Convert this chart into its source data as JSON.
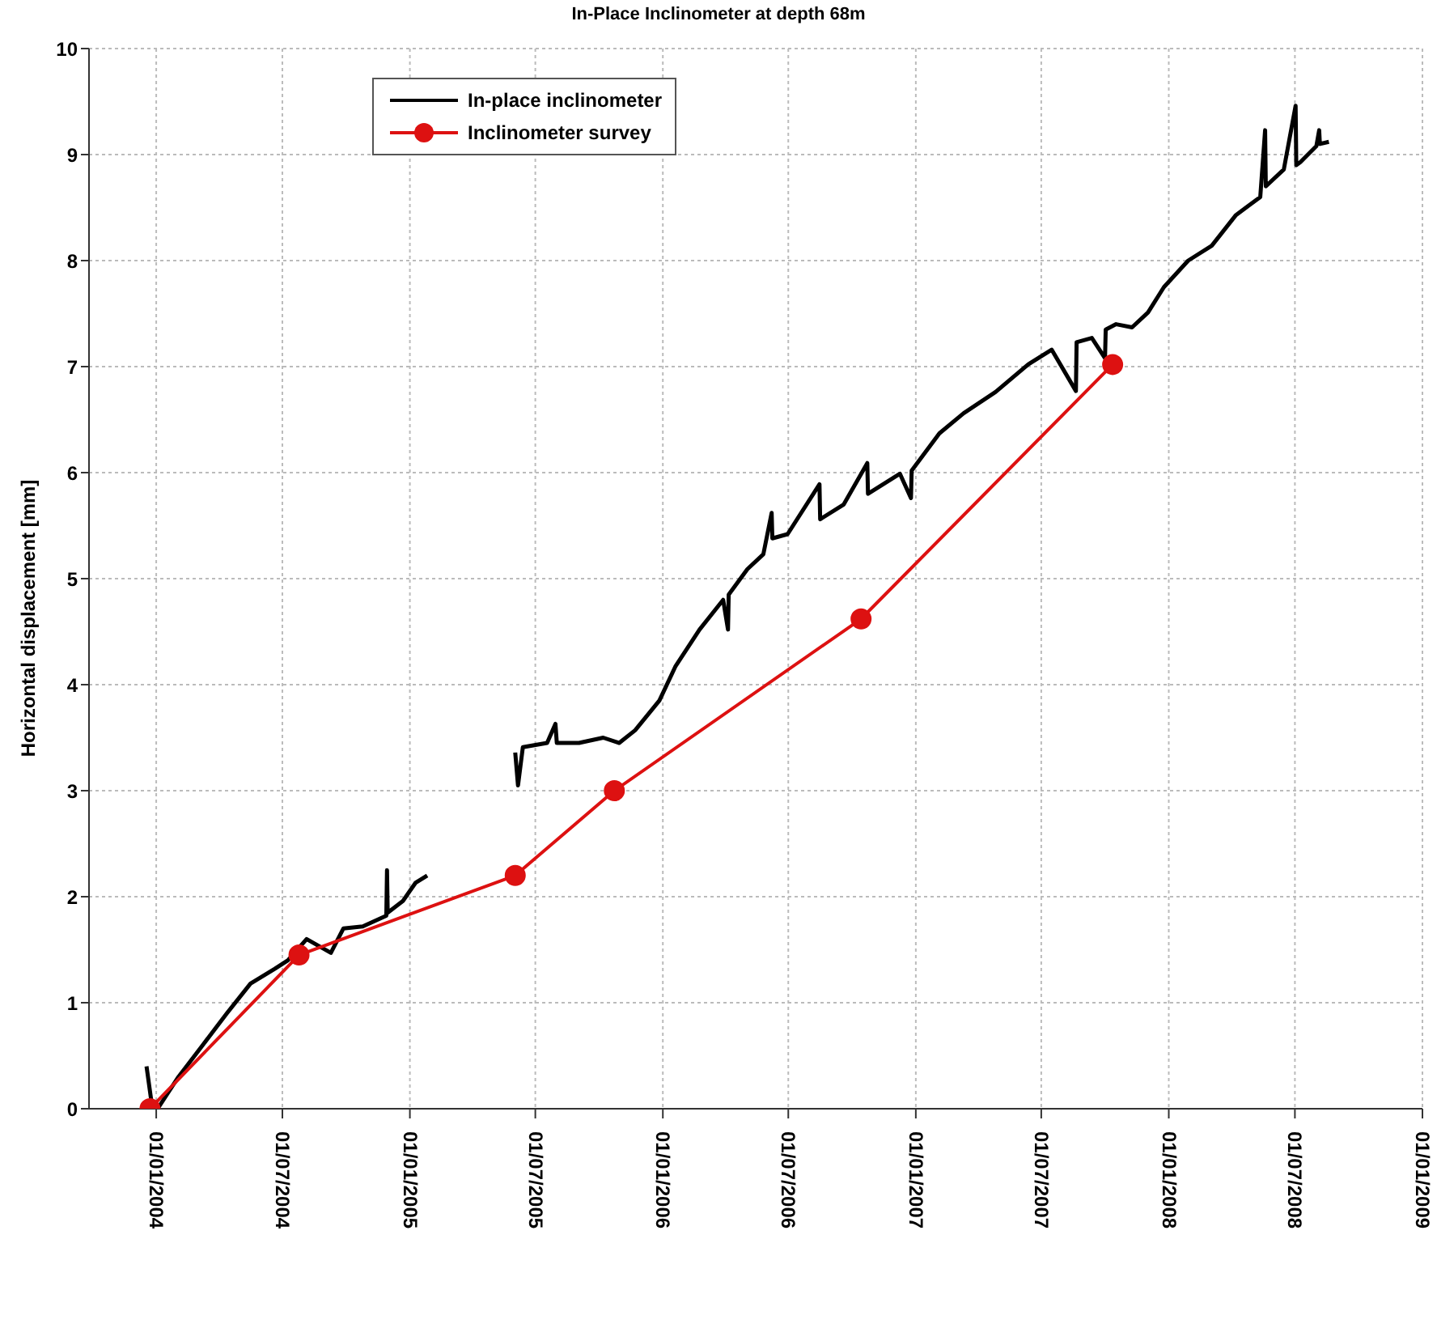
{
  "chart_data": {
    "type": "line",
    "title": "In-Place Inclinometer at depth 68m",
    "ylabel": "Horizontal displacement [mm]",
    "xlim": [
      "2003-09-26",
      "2009-01-01"
    ],
    "xticks": [
      {
        "value": "2004-01-01",
        "label": "01/01/2004"
      },
      {
        "value": "2004-07-01",
        "label": "01/07/2004"
      },
      {
        "value": "2005-01-01",
        "label": "01/01/2005"
      },
      {
        "value": "2005-07-01",
        "label": "01/07/2005"
      },
      {
        "value": "2006-01-01",
        "label": "01/01/2006"
      },
      {
        "value": "2006-07-01",
        "label": "01/07/2006"
      },
      {
        "value": "2007-01-01",
        "label": "01/01/2007"
      },
      {
        "value": "2007-07-01",
        "label": "01/07/2007"
      },
      {
        "value": "2008-01-01",
        "label": "01/01/2008"
      },
      {
        "value": "2008-07-01",
        "label": "01/07/2008"
      },
      {
        "value": "2009-01-01",
        "label": "01/01/2009"
      }
    ],
    "ylim": [
      0,
      10
    ],
    "yticks": [
      0,
      1,
      2,
      3,
      4,
      5,
      6,
      7,
      8,
      9,
      10
    ],
    "grid": true,
    "legend": "top left",
    "line_style": "solid",
    "series": [
      {
        "name": "In-place inclinometer",
        "color": "#000000",
        "marker": "none",
        "x": [
          "2003-12-18",
          "2003-12-25",
          "2004-01-03",
          "2004-02-02",
          "2004-03-08",
          "2004-04-12",
          "2004-05-16",
          "2004-06-20",
          "2004-07-09",
          "2004-08-05",
          "2004-09-09",
          "2004-09-27",
          "2004-10-25",
          "2004-11-28",
          "2004-11-29",
          "2004-11-30",
          "2004-12-22",
          "2005-01-09",
          "2005-01-26",
          "2005-03-15",
          "2005-06-02",
          "2005-06-06",
          "2005-06-13",
          "2005-07-18",
          "2005-07-30",
          "2005-08-01",
          "2005-09-02",
          "2005-10-07",
          "2005-10-30",
          "2005-11-22",
          "2005-12-27",
          "2006-01-19",
          "2006-02-23",
          "2006-03-29",
          "2006-04-05",
          "2006-04-06",
          "2006-05-03",
          "2006-05-26",
          "2006-06-07",
          "2006-06-08",
          "2006-06-30",
          "2006-08-15",
          "2006-08-16",
          "2006-09-19",
          "2006-10-23",
          "2006-10-24",
          "2006-12-09",
          "2006-12-25",
          "2006-12-26",
          "2007-02-04",
          "2007-03-11",
          "2007-04-26",
          "2007-06-12",
          "2007-07-16",
          "2007-08-20",
          "2007-08-21",
          "2007-09-12",
          "2007-10-01",
          "2007-10-02",
          "2007-10-17",
          "2007-11-09",
          "2007-12-02",
          "2007-12-25",
          "2008-01-29",
          "2008-03-03",
          "2008-04-07",
          "2008-05-12",
          "2008-05-19",
          "2008-05-20",
          "2008-06-15",
          "2008-07-02",
          "2008-07-03",
          "2008-07-09",
          "2008-08-01",
          "2008-08-05",
          "2008-08-06",
          "2008-08-19"
        ],
        "values": [
          0.4,
          0.07,
          0.0,
          0.3,
          0.6,
          0.9,
          1.18,
          1.32,
          1.4,
          1.6,
          1.47,
          1.7,
          1.72,
          1.82,
          2.25,
          1.85,
          1.96,
          2.13,
          2.2,
          null,
          3.36,
          3.05,
          3.41,
          3.45,
          3.63,
          3.45,
          3.45,
          3.5,
          3.45,
          3.57,
          3.85,
          4.17,
          4.52,
          4.8,
          4.52,
          4.85,
          5.09,
          5.23,
          5.62,
          5.38,
          5.42,
          5.89,
          5.56,
          5.7,
          6.09,
          5.8,
          5.99,
          5.76,
          6.02,
          6.37,
          6.56,
          6.76,
          7.02,
          7.16,
          6.77,
          7.23,
          7.27,
          7.08,
          7.35,
          7.4,
          7.37,
          7.51,
          7.75,
          8.0,
          8.14,
          8.43,
          8.6,
          9.23,
          8.7,
          8.86,
          9.46,
          8.9,
          8.93,
          9.08,
          9.23,
          9.1,
          9.12
        ]
      },
      {
        "name": "Inclinometer survey",
        "color": "#dd1111",
        "marker": "circle",
        "x": [
          "2003-12-23",
          "2004-07-25",
          "2005-06-02",
          "2005-10-23",
          "2006-10-14",
          "2007-10-12"
        ],
        "values": [
          0,
          1.45,
          2.2,
          3.0,
          4.62,
          7.02
        ]
      }
    ]
  }
}
